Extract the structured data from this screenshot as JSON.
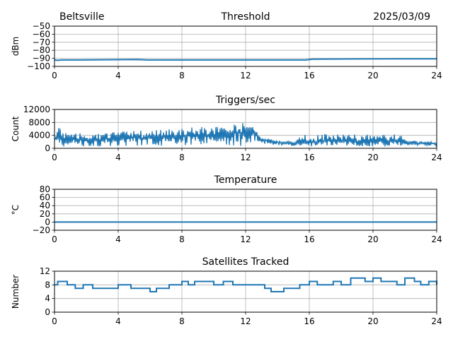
{
  "header": {
    "location": "Beltsville",
    "date": "2025/03/09"
  },
  "colors": {
    "series": "#1f77b4"
  },
  "chart_data": [
    {
      "type": "line",
      "title": "Threshold",
      "xlabel": "",
      "ylabel": "dBm",
      "xlim": [
        0,
        24
      ],
      "ylim": [
        -100,
        -50
      ],
      "xticks": [
        "0",
        "4",
        "8",
        "12",
        "16",
        "20",
        "24"
      ],
      "yticks": [
        "−50",
        "−60",
        "−70",
        "−80",
        "−90",
        "−100"
      ],
      "grid": true,
      "series": [
        {
          "x": [
            0,
            0.2,
            0.4,
            1.6,
            5.2,
            5.8,
            15.8,
            16.2,
            21.8,
            24
          ],
          "y": [
            -92,
            -92.5,
            -92,
            -92,
            -91.5,
            -92,
            -92,
            -91,
            -90.5,
            -90.5
          ]
        }
      ]
    },
    {
      "type": "line",
      "title": "Triggers/sec",
      "xlabel": "",
      "ylabel": "Count",
      "xlim": [
        0,
        24
      ],
      "ylim": [
        0,
        12000
      ],
      "xticks": [
        "0",
        "4",
        "8",
        "12",
        "16",
        "20",
        "24"
      ],
      "yticks": [
        "12000",
        "8000",
        "4000",
        "0"
      ],
      "grid": true,
      "series": [
        {
          "x": [
            0,
            0.3,
            0.5,
            1,
            2,
            3,
            4,
            5,
            6,
            7,
            8,
            8.5,
            9,
            10,
            11,
            12,
            12.5,
            13,
            14,
            15,
            15.6,
            16,
            17,
            18,
            19,
            20,
            21,
            21.6,
            22,
            23,
            24
          ],
          "y": [
            2500,
            6000,
            3000,
            2500,
            2600,
            2700,
            3000,
            3200,
            3400,
            3800,
            4000,
            4200,
            4000,
            4200,
            4500,
            5000,
            4800,
            2800,
            1800,
            1500,
            2000,
            1800,
            2200,
            2400,
            2300,
            2200,
            2100,
            2500,
            1600,
            1500,
            1400
          ],
          "high": [
            4000,
            7000,
            5000,
            4500,
            4700,
            4900,
            5200,
            5400,
            5600,
            6000,
            6000,
            6500,
            6500,
            7000,
            7000,
            8000,
            7500,
            3500,
            2500,
            2000,
            6000,
            4000,
            4500,
            4500,
            4300,
            4200,
            4300,
            5800,
            2500,
            2200,
            2000
          ],
          "low": [
            500,
            1000,
            600,
            500,
            500,
            600,
            700,
            600,
            700,
            800,
            700,
            800,
            1000,
            700,
            800,
            600,
            1500,
            1500,
            900,
            800,
            600,
            500,
            600,
            700,
            600,
            600,
            500,
            600,
            1000,
            900,
            800
          ]
        }
      ]
    },
    {
      "type": "line",
      "title": "Temperature",
      "xlabel": "",
      "ylabel": "°C",
      "xlim": [
        0,
        24
      ],
      "ylim": [
        -20,
        80
      ],
      "xticks": [
        "0",
        "4",
        "8",
        "12",
        "16",
        "20",
        "24"
      ],
      "yticks": [
        "80",
        "60",
        "40",
        "20",
        "0",
        "−20"
      ],
      "grid": true,
      "series": [
        {
          "x": [
            0,
            24
          ],
          "y": [
            0,
            0
          ]
        }
      ]
    },
    {
      "type": "line",
      "title": "Satellites Tracked",
      "xlabel": "",
      "ylabel": "Number",
      "xlim": [
        0,
        24
      ],
      "ylim": [
        0,
        12
      ],
      "xticks": [
        "0",
        "4",
        "8",
        "12",
        "16",
        "20",
        "24"
      ],
      "yticks": [
        "12",
        "8",
        "4",
        "0"
      ],
      "grid": true,
      "series": [
        {
          "x": [
            0,
            0.2,
            0.6,
            0.8,
            1.3,
            1.8,
            2.4,
            3.4,
            4,
            4.4,
            4.8,
            5.2,
            5.6,
            6,
            6.4,
            6.8,
            7.2,
            7.6,
            8,
            8.4,
            8.8,
            9.2,
            10,
            10.6,
            11.2,
            11.6,
            12,
            12.6,
            13.2,
            13.6,
            14,
            14.4,
            14.8,
            15.4,
            16,
            16.5,
            17,
            17.5,
            18,
            18.6,
            19,
            19.5,
            20,
            20.5,
            21,
            21.5,
            22,
            22.6,
            23,
            23.5,
            24
          ],
          "y": [
            8,
            9,
            9,
            8,
            7,
            8,
            7,
            7,
            8,
            8,
            7,
            7,
            7,
            6,
            7,
            7,
            8,
            8,
            9,
            8,
            9,
            9,
            8,
            9,
            8,
            8,
            8,
            8,
            7,
            6,
            6,
            7,
            7,
            8,
            9,
            8,
            8,
            9,
            8,
            10,
            10,
            9,
            10,
            9,
            9,
            8,
            10,
            9,
            8,
            9,
            8
          ]
        }
      ]
    }
  ]
}
